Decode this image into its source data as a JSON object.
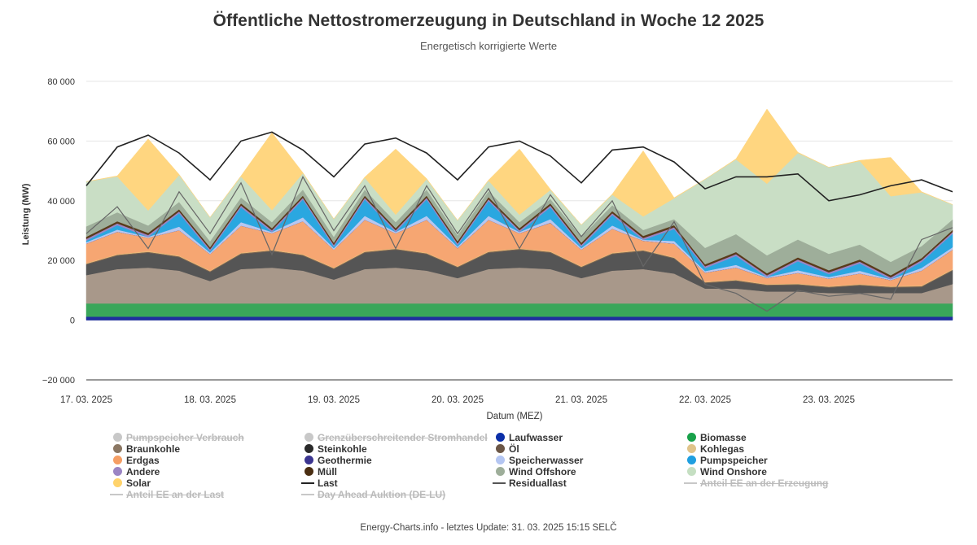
{
  "title": "Öffentliche Nettostromerzeugung in Deutschland in Woche 12 2025",
  "subtitle": "Energetisch korrigierte Werte",
  "footer": "Energy-Charts.info - letztes Update: 31. 03. 2025 15:15 SELČ",
  "chart_data": {
    "type": "area",
    "stacked": true,
    "ylabel": "Leistung (MW)",
    "xlabel": "Datum (MEZ)",
    "ylim": [
      -20000,
      80000
    ],
    "yticks": [
      -20000,
      0,
      20000,
      40000,
      60000,
      80000
    ],
    "ytick_labels": [
      "−20 000",
      "0",
      "20 000",
      "40 000",
      "60 000",
      "80 000"
    ],
    "x_days": [
      "17. 03. 2025",
      "18. 03. 2025",
      "19. 03. 2025",
      "20. 03. 2025",
      "21. 03. 2025",
      "22. 03. 2025",
      "23. 03. 2025"
    ],
    "x_hours": [
      0,
      6,
      12,
      18,
      24,
      30,
      36,
      42,
      48,
      54,
      60,
      66,
      72,
      78,
      84,
      90,
      96,
      102,
      108,
      114,
      120,
      126,
      132,
      138,
      144,
      150,
      156,
      162,
      168
    ],
    "grid": true,
    "legend_position": "bottom",
    "series": [
      {
        "name": "Laufwasser",
        "color": "#1f2f9e",
        "values": [
          1200,
          1200,
          1200,
          1200,
          1200,
          1200,
          1200,
          1200,
          1200,
          1200,
          1200,
          1200,
          1200,
          1200,
          1200,
          1200,
          1200,
          1200,
          1200,
          1200,
          1200,
          1200,
          1200,
          1200,
          1200,
          1200,
          1200,
          1200,
          1200
        ]
      },
      {
        "name": "Biomasse",
        "color": "#3aa65a",
        "values": [
          4400,
          4400,
          4400,
          4400,
          4400,
          4400,
          4400,
          4400,
          4400,
          4400,
          4400,
          4400,
          4400,
          4400,
          4400,
          4400,
          4400,
          4400,
          4400,
          4400,
          4400,
          4400,
          4400,
          4400,
          4400,
          4400,
          4400,
          4400,
          4400
        ]
      },
      {
        "name": "Braunkohle",
        "color": "#a8988a",
        "values": [
          9500,
          11500,
          12000,
          11000,
          7500,
          11500,
          12000,
          11000,
          8000,
          11500,
          12000,
          11000,
          8500,
          11500,
          12000,
          11500,
          8500,
          11000,
          11500,
          10000,
          5000,
          5000,
          4000,
          4000,
          3500,
          3500,
          3500,
          3500,
          6500
        ]
      },
      {
        "name": "Steinkohle",
        "color": "#555555",
        "values": [
          3500,
          4500,
          5000,
          4500,
          3000,
          5000,
          5500,
          5000,
          3500,
          5500,
          6000,
          5500,
          3500,
          5500,
          6000,
          5500,
          3500,
          5500,
          6000,
          5000,
          1800,
          2500,
          2000,
          2200,
          1800,
          2500,
          1800,
          2000,
          4500
        ]
      },
      {
        "name": "Öl",
        "color": "#7a6352",
        "values": [
          300,
          300,
          300,
          300,
          300,
          300,
          300,
          300,
          300,
          300,
          300,
          300,
          300,
          300,
          300,
          300,
          300,
          300,
          300,
          300,
          300,
          300,
          300,
          300,
          300,
          300,
          300,
          300,
          300
        ]
      },
      {
        "name": "Kohlegas",
        "color": "#e8c07a",
        "values": [
          200,
          200,
          200,
          200,
          200,
          200,
          200,
          200,
          200,
          200,
          200,
          200,
          200,
          200,
          200,
          200,
          200,
          200,
          200,
          200,
          200,
          200,
          200,
          200,
          200,
          200,
          200,
          200,
          200
        ]
      },
      {
        "name": "Erdgas",
        "color": "#f6a672",
        "values": [
          6500,
          7500,
          4500,
          8500,
          5500,
          9000,
          5500,
          11000,
          6000,
          10500,
          5000,
          11000,
          6000,
          10500,
          5000,
          9500,
          5500,
          8000,
          3000,
          4500,
          3000,
          4000,
          2000,
          3500,
          2500,
          3500,
          2000,
          5000,
          6500
        ]
      },
      {
        "name": "Geothermie",
        "color": "#3b3590",
        "values": [
          30,
          30,
          30,
          30,
          30,
          30,
          30,
          30,
          30,
          30,
          30,
          30,
          30,
          30,
          30,
          30,
          30,
          30,
          30,
          30,
          30,
          30,
          30,
          30,
          30,
          30,
          30,
          30,
          30
        ]
      },
      {
        "name": "Speicherwasser",
        "color": "#b8c7f0",
        "values": [
          500,
          700,
          300,
          1200,
          500,
          1200,
          400,
          1300,
          500,
          1300,
          400,
          1300,
          500,
          1300,
          400,
          1200,
          500,
          1100,
          300,
          900,
          500,
          900,
          300,
          900,
          500,
          900,
          300,
          900,
          800
        ]
      },
      {
        "name": "Pumpspeicher",
        "color": "#2aa7e0",
        "values": [
          500,
          1500,
          0,
          4500,
          500,
          5000,
          0,
          6000,
          500,
          5500,
          0,
          5500,
          500,
          5000,
          0,
          4000,
          500,
          3500,
          0,
          4000,
          1000,
          3000,
          0,
          3000,
          1000,
          2500,
          0,
          2000,
          4500
        ]
      },
      {
        "name": "Andere",
        "color": "#9b85c4",
        "values": [
          600,
          600,
          600,
          600,
          600,
          600,
          600,
          600,
          600,
          600,
          600,
          600,
          600,
          600,
          600,
          600,
          600,
          600,
          600,
          600,
          600,
          600,
          600,
          600,
          600,
          600,
          600,
          600,
          600
        ]
      },
      {
        "name": "Müll",
        "color": "#5a3a1a",
        "values": [
          700,
          700,
          700,
          700,
          700,
          700,
          700,
          700,
          700,
          700,
          700,
          700,
          700,
          700,
          700,
          700,
          700,
          700,
          700,
          700,
          700,
          700,
          700,
          700,
          700,
          700,
          700,
          700,
          700
        ]
      },
      {
        "name": "Wind Offshore",
        "color": "#9eae9a",
        "values": [
          3500,
          3000,
          2500,
          2500,
          2000,
          2000,
          2000,
          2000,
          2000,
          2000,
          2000,
          2000,
          2000,
          2000,
          2000,
          1500,
          2000,
          2000,
          2000,
          2000,
          5500,
          6000,
          6000,
          6000,
          5500,
          5000,
          4500,
          4000,
          3500
        ]
      },
      {
        "name": "Wind Onshore",
        "color": "#c9dec5",
        "values": [
          15000,
          12000,
          5000,
          9000,
          8000,
          7000,
          4000,
          5500,
          6000,
          4000,
          2500,
          3500,
          5000,
          3500,
          2500,
          3000,
          4000,
          3500,
          4500,
          7000,
          23000,
          25000,
          24000,
          29000,
          29000,
          28000,
          22000,
          18000,
          5000
        ]
      },
      {
        "name": "Solar",
        "color": "#ffd680",
        "values": [
          0,
          200,
          24000,
          200,
          0,
          200,
          26000,
          200,
          0,
          200,
          22000,
          200,
          0,
          200,
          22000,
          200,
          0,
          200,
          22000,
          200,
          0,
          200,
          25000,
          200,
          0,
          200,
          13000,
          200,
          0
        ]
      }
    ],
    "lines": [
      {
        "name": "Last",
        "color": "#222222",
        "values": [
          45000,
          58000,
          62000,
          56000,
          47000,
          60000,
          63000,
          57000,
          48000,
          59000,
          61000,
          56000,
          47000,
          58000,
          60000,
          55000,
          46000,
          57000,
          58000,
          53000,
          44000,
          48000,
          48000,
          49000,
          40000,
          42000,
          45000,
          47000,
          43000
        ]
      },
      {
        "name": "Residuallast",
        "color": "#666666",
        "values": [
          29000,
          38000,
          24000,
          43000,
          29000,
          46000,
          22000,
          48000,
          30000,
          45000,
          24000,
          45000,
          29000,
          44000,
          24000,
          42000,
          28000,
          40000,
          18000,
          33000,
          12000,
          9000,
          3000,
          10000,
          8000,
          9000,
          7000,
          27000,
          31000
        ]
      }
    ],
    "legend": [
      {
        "name": "Pumpspeicher Verbrauch",
        "color": "#c8c8c8",
        "symbol": "dot",
        "visible": false
      },
      {
        "name": "Grenzüberschreitender Stromhandel",
        "color": "#c8c8c8",
        "symbol": "dot",
        "visible": false
      },
      {
        "name": "Laufwasser",
        "color": "#0b2fa8",
        "symbol": "dot",
        "visible": true
      },
      {
        "name": "Biomasse",
        "color": "#18a14a",
        "symbol": "dot",
        "visible": true
      },
      {
        "name": "Braunkohle",
        "color": "#8b7763",
        "symbol": "dot",
        "visible": true
      },
      {
        "name": "Steinkohle",
        "color": "#2a2a2a",
        "symbol": "dot",
        "visible": true
      },
      {
        "name": "Öl",
        "color": "#6b5646",
        "symbol": "dot",
        "visible": true
      },
      {
        "name": "Kohlegas",
        "color": "#e0c48a",
        "symbol": "dot",
        "visible": true
      },
      {
        "name": "Erdgas",
        "color": "#f59e64",
        "symbol": "dot",
        "visible": true
      },
      {
        "name": "Geothermie",
        "color": "#3b3590",
        "symbol": "dot",
        "visible": true
      },
      {
        "name": "Speicherwasser",
        "color": "#b4c6f2",
        "symbol": "dot",
        "visible": true
      },
      {
        "name": "Pumpspeicher",
        "color": "#1f9fe0",
        "symbol": "dot",
        "visible": true
      },
      {
        "name": "Andere",
        "color": "#9b85c4",
        "symbol": "dot",
        "visible": true
      },
      {
        "name": "Müll",
        "color": "#4a2e12",
        "symbol": "dot",
        "visible": true
      },
      {
        "name": "Wind Offshore",
        "color": "#9eae9a",
        "symbol": "dot",
        "visible": true
      },
      {
        "name": "Wind Onshore",
        "color": "#c5dfc2",
        "symbol": "dot",
        "visible": true
      },
      {
        "name": "Solar",
        "color": "#ffd36b",
        "symbol": "dot",
        "visible": true
      },
      {
        "name": "Last",
        "color": "#222222",
        "symbol": "line",
        "visible": true
      },
      {
        "name": "Residuallast",
        "color": "#555555",
        "symbol": "line",
        "visible": true
      },
      {
        "name": "Anteil EE an der Erzeugung",
        "color": "#c8c8c8",
        "symbol": "line",
        "visible": false
      },
      {
        "name": "Anteil EE an der Last",
        "color": "#c8c8c8",
        "symbol": "line",
        "visible": false
      },
      {
        "name": "Day Ahead Auktion (DE-LU)",
        "color": "#c8c8c8",
        "symbol": "line",
        "visible": false
      }
    ]
  }
}
